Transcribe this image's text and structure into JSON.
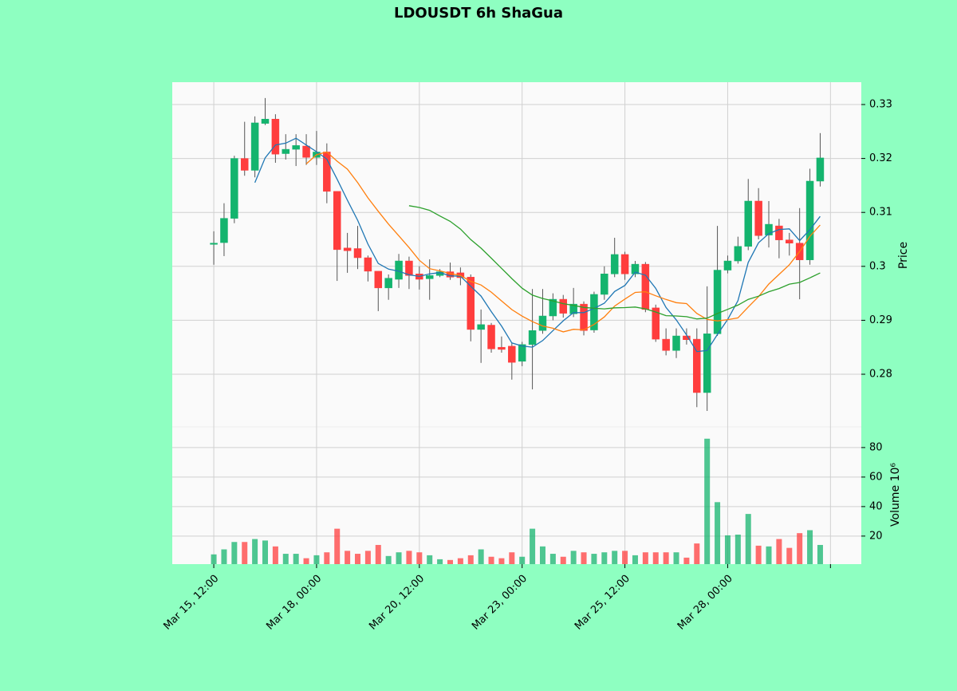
{
  "chart_data": {
    "type": "candlestick",
    "title": "LDOUSDT 6h ShaGua",
    "ylabel": "Price",
    "y2label": "Volume  10⁶",
    "open": [
      0.3042,
      0.3044,
      0.3089,
      0.32,
      0.3178,
      0.3265,
      0.3273,
      0.3209,
      0.3217,
      0.3223,
      0.3202,
      0.3212,
      0.3139,
      0.3034,
      0.3033,
      0.3016,
      0.2991,
      0.296,
      0.2976,
      0.301,
      0.2986,
      0.2977,
      0.2983,
      0.299,
      0.2988,
      0.298,
      0.2883,
      0.2891,
      0.285,
      0.2852,
      0.2824,
      0.2855,
      0.2881,
      0.2908,
      0.2939,
      0.2912,
      0.293,
      0.2882,
      0.2948,
      0.2986,
      0.3022,
      0.2986,
      0.3004,
      0.2923,
      0.2865,
      0.2844,
      0.2871,
      0.2865,
      0.2766,
      0.2875,
      0.2993,
      0.301,
      0.3037,
      0.3121,
      0.3058,
      0.3075,
      0.3049,
      0.3043,
      0.3012,
      0.3158
    ],
    "high": [
      0.3065,
      0.3117,
      0.3205,
      0.3268,
      0.3278,
      0.3312,
      0.3282,
      0.3245,
      0.3245,
      0.3245,
      0.3251,
      0.3228,
      0.3139,
      0.3062,
      0.3075,
      0.302,
      0.2991,
      0.2985,
      0.3023,
      0.3018,
      0.3,
      0.3013,
      0.2995,
      0.3007,
      0.2998,
      0.2985,
      0.292,
      0.2895,
      0.287,
      0.2858,
      0.286,
      0.2958,
      0.2958,
      0.295,
      0.2947,
      0.296,
      0.2935,
      0.2953,
      0.3,
      0.3053,
      0.3027,
      0.301,
      0.3008,
      0.2929,
      0.2885,
      0.2885,
      0.2885,
      0.2885,
      0.2963,
      0.3075,
      0.302,
      0.3055,
      0.3162,
      0.3145,
      0.3121,
      0.3088,
      0.3062,
      0.3108,
      0.3181,
      0.3247
    ],
    "low": [
      0.3003,
      0.3019,
      0.308,
      0.3168,
      0.3165,
      0.3262,
      0.3192,
      0.3198,
      0.3186,
      0.3188,
      0.3188,
      0.3117,
      0.2973,
      0.2988,
      0.2995,
      0.2972,
      0.2917,
      0.2938,
      0.296,
      0.2958,
      0.2957,
      0.2938,
      0.298,
      0.2975,
      0.2965,
      0.2861,
      0.2821,
      0.284,
      0.284,
      0.279,
      0.2815,
      0.2772,
      0.2875,
      0.29,
      0.2905,
      0.2906,
      0.2872,
      0.2877,
      0.2938,
      0.298,
      0.2975,
      0.298,
      0.2915,
      0.286,
      0.2835,
      0.283,
      0.2855,
      0.2739,
      0.2732,
      0.2871,
      0.2987,
      0.3005,
      0.303,
      0.305,
      0.3035,
      0.3015,
      0.302,
      0.2939,
      0.3003,
      0.3148
    ],
    "close": [
      0.3043,
      0.3089,
      0.32,
      0.3178,
      0.3266,
      0.3273,
      0.3208,
      0.3217,
      0.3224,
      0.3202,
      0.3212,
      0.3139,
      0.3031,
      0.3029,
      0.3016,
      0.2991,
      0.296,
      0.2978,
      0.301,
      0.2983,
      0.2976,
      0.2983,
      0.299,
      0.298,
      0.2979,
      0.2883,
      0.2892,
      0.2847,
      0.2846,
      0.2822,
      0.2855,
      0.2881,
      0.2908,
      0.2939,
      0.2913,
      0.293,
      0.2881,
      0.2948,
      0.2986,
      0.3022,
      0.2986,
      0.3004,
      0.292,
      0.2865,
      0.2844,
      0.2871,
      0.2864,
      0.2766,
      0.2875,
      0.2993,
      0.301,
      0.3037,
      0.3121,
      0.3057,
      0.3078,
      0.3049,
      0.3043,
      0.3012,
      0.3158,
      0.3201
    ],
    "volume": [
      7.6,
      11,
      16,
      16,
      18,
      17,
      13,
      8,
      8,
      5,
      7,
      9,
      25,
      10,
      8,
      10,
      14,
      6.5,
      9,
      10,
      9,
      7,
      4.3,
      3.8,
      5,
      7,
      11,
      6,
      5,
      9,
      6,
      25,
      13,
      8,
      6,
      10,
      9,
      8,
      9,
      10,
      10,
      7,
      9,
      9,
      9,
      9,
      5.4,
      15,
      86,
      43,
      20.5,
      21,
      35,
      13.5,
      13,
      18,
      12,
      22,
      24,
      14
    ],
    "up_color": "#14b46e",
    "down_color": "#ff3d3d",
    "mav": [
      5,
      10,
      20
    ],
    "mav_colors": [
      "#1f77b4",
      "#ff7f0e",
      "#2ca02c"
    ],
    "xlim": [
      -4.04,
      63.0
    ],
    "xticks": [
      {
        "value": 0,
        "label": "Mar 15, 12:00"
      },
      {
        "value": 10,
        "label": "Mar 18, 00:00"
      },
      {
        "value": 20,
        "label": "Mar 20, 12:00"
      },
      {
        "value": 30,
        "label": "Mar 23, 00:00"
      },
      {
        "value": 40,
        "label": "Mar 25, 12:00"
      },
      {
        "value": 50,
        "label": "Mar 28, 00:00"
      },
      {
        "value": 60,
        "label": null
      }
    ],
    "ylim": [
      0.27024,
      0.33414
    ],
    "yticks": [
      0.28,
      0.29,
      0.3,
      0.31,
      0.32,
      0.33
    ],
    "y2lim": [
      1,
      94
    ],
    "y2ticks": [
      20,
      40,
      60,
      80
    ],
    "grid": true
  }
}
